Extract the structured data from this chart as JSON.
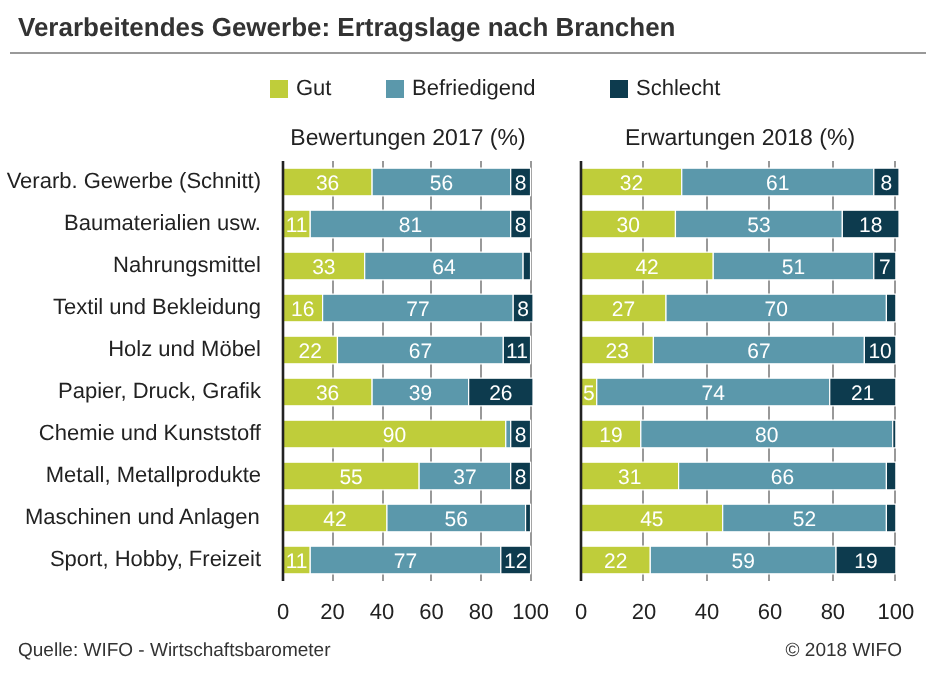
{
  "chart_data": [
    {
      "type": "bar",
      "orientation": "horizontal",
      "stacked": true,
      "title": "Verarbeitendes Gewerbe: Ertragslage nach Branchen",
      "subtitle": "Bewertungen 2017 (%)",
      "legend": "top",
      "grid": "x",
      "categories": [
        "Verarb. Gewerbe (Schnitt)",
        "Baumaterialien usw.",
        "Nahrungsmittel",
        "Textil und Bekleidung",
        "Holz und Möbel",
        "Papier, Druck, Grafik",
        "Chemie und Kunststoff",
        "Metall, Metallprodukte",
        "Maschinen und Anlagen",
        "Sport, Hobby, Freizeit"
      ],
      "xlim": [
        0,
        101
      ],
      "xticks": [
        0,
        20,
        40,
        60,
        80,
        100
      ],
      "series": [
        {
          "name": "Gut",
          "color": "#bfcd3a",
          "values": [
            36,
            11,
            33,
            16,
            22,
            36,
            90,
            55,
            42,
            11
          ],
          "value_labels": [
            "36",
            "11",
            "33",
            "16",
            "22",
            "36",
            "90",
            "55",
            "42",
            "11"
          ]
        },
        {
          "name": "Befriedigend",
          "color": "#5b98ab",
          "values": [
            56,
            81,
            64,
            77,
            67,
            39,
            2,
            37,
            56,
            77
          ],
          "value_labels": [
            "56",
            "81",
            "64",
            "77",
            "67",
            "39",
            null,
            "37",
            "56",
            "77"
          ]
        },
        {
          "name": "Schlecht",
          "color": "#0d3b4e",
          "values": [
            8,
            8,
            3,
            8,
            11,
            26,
            8,
            8,
            2,
            12
          ],
          "value_labels": [
            "8",
            "8",
            null,
            "8",
            "11",
            "26",
            "8",
            "8",
            null,
            "12"
          ]
        }
      ],
      "annotations": [
        "Quelle: WIFO - Wirtschaftsbarometer"
      ]
    },
    {
      "type": "bar",
      "orientation": "horizontal",
      "stacked": true,
      "subtitle": "Erwartungen 2018 (%)",
      "grid": "x",
      "tick_labels": "x",
      "xlim": [
        0,
        101
      ],
      "xticks": [
        0,
        20,
        40,
        60,
        80,
        100
      ],
      "series": [
        {
          "color": "#bfcd3a",
          "values": [
            32,
            30,
            42,
            27,
            23,
            5,
            19,
            31,
            45,
            22
          ],
          "value_labels": [
            "32",
            "30",
            "42",
            "27",
            "23",
            "5",
            "19",
            "31",
            "45",
            "22"
          ]
        },
        {
          "color": "#5b98ab",
          "values": [
            61,
            53,
            51,
            70,
            67,
            74,
            80,
            66,
            52,
            59
          ],
          "value_labels": [
            "61",
            "53",
            "51",
            "70",
            "67",
            "74",
            "80",
            "66",
            "52",
            "59"
          ]
        },
        {
          "color": "#0d3b4e",
          "values": [
            8,
            18,
            7,
            3,
            10,
            21,
            1,
            3,
            3,
            19
          ],
          "value_labels": [
            "8",
            "18",
            "7",
            null,
            "10",
            "21",
            null,
            null,
            null,
            "19"
          ]
        }
      ],
      "annotations": [
        "© 2018 WIFO"
      ]
    }
  ]
}
